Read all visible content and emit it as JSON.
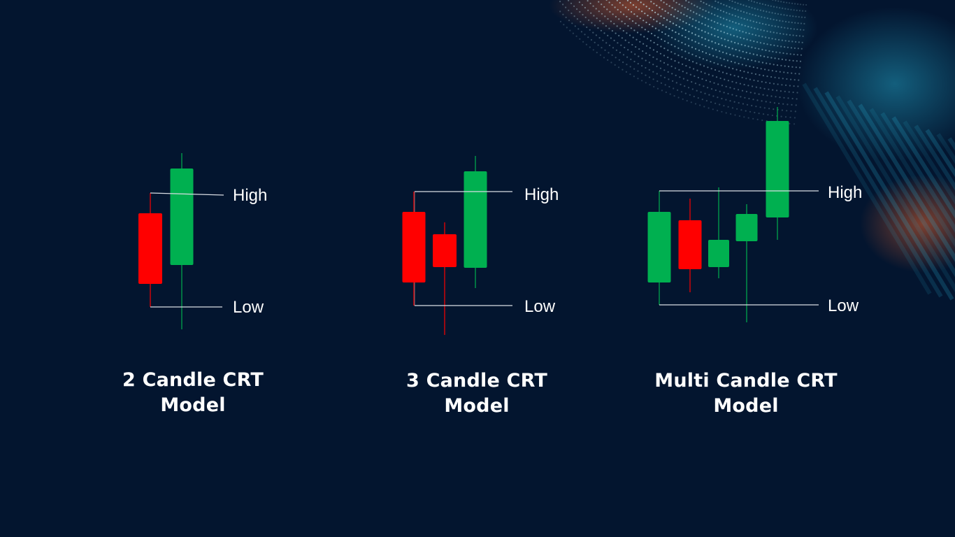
{
  "models": [
    {
      "caption_line1": "2 Candle CRT",
      "caption_line2": "Model",
      "high_label": "High",
      "low_label": "Low",
      "candles": [
        {
          "direction": "bearish",
          "color": "#ff0000"
        },
        {
          "direction": "bullish",
          "color": "#00b050"
        }
      ]
    },
    {
      "caption_line1": "3 Candle CRT",
      "caption_line2": "Model",
      "high_label": "High",
      "low_label": "Low",
      "candles": [
        {
          "direction": "bearish",
          "color": "#ff0000"
        },
        {
          "direction": "bearish",
          "color": "#ff0000"
        },
        {
          "direction": "bullish",
          "color": "#00b050"
        }
      ]
    },
    {
      "caption_line1": "Multi Candle CRT",
      "caption_line2": "Model",
      "high_label": "High",
      "low_label": "Low",
      "candles": [
        {
          "direction": "bullish",
          "color": "#00b050"
        },
        {
          "direction": "bearish",
          "color": "#ff0000"
        },
        {
          "direction": "bullish",
          "color": "#00b050"
        },
        {
          "direction": "bullish",
          "color": "#00b050"
        },
        {
          "direction": "bullish",
          "color": "#00b050"
        }
      ]
    }
  ],
  "colors": {
    "background": "#03152f",
    "bullish": "#00b050",
    "bearish": "#ff0000",
    "level_line": "#d9dde3",
    "text": "#ffffff"
  }
}
